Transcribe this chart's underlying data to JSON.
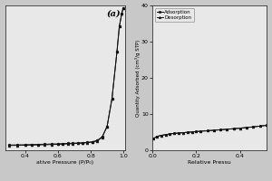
{
  "fig_width": 3.0,
  "fig_height": 2.0,
  "dpi": 100,
  "bg_color": "#c8c8c8",
  "plot_bg": "#e8e8e8",
  "panel_a": {
    "label": "(a)",
    "xlabel": "ative Pressure (P/P₀)",
    "xlim": [
      0.28,
      1.01
    ],
    "ylim": [
      0,
      280
    ],
    "xticks": [
      0.4,
      0.6,
      0.8,
      1.0
    ],
    "adsorption_x": [
      0.3,
      0.35,
      0.4,
      0.44,
      0.48,
      0.52,
      0.56,
      0.6,
      0.63,
      0.66,
      0.69,
      0.72,
      0.75,
      0.78,
      0.81,
      0.84,
      0.87,
      0.9,
      0.93,
      0.96,
      0.975,
      0.99,
      0.998
    ],
    "adsorption_y": [
      10,
      10.3,
      10.7,
      11.0,
      11.3,
      11.7,
      12.0,
      12.4,
      12.8,
      13.2,
      13.6,
      14.0,
      14.5,
      15.2,
      16.5,
      19,
      26,
      46,
      100,
      190,
      240,
      265,
      275
    ],
    "desorption_x": [
      0.998,
      0.99,
      0.975,
      0.96,
      0.93,
      0.9,
      0.87,
      0.84,
      0.81,
      0.78,
      0.75,
      0.72,
      0.69,
      0.66,
      0.63,
      0.6,
      0.56,
      0.52,
      0.48,
      0.44,
      0.4,
      0.35,
      0.3
    ],
    "desorption_y": [
      275,
      265,
      240,
      190,
      100,
      46,
      25,
      18,
      15.5,
      14.5,
      13.8,
      13.2,
      12.7,
      12.2,
      11.8,
      11.4,
      11.0,
      10.6,
      10.3,
      10.0,
      9.7,
      9.4,
      9.2
    ],
    "line_color": "#111111",
    "marker_adsorption": "o",
    "marker_desorption": "^",
    "markersize": 2.0,
    "linewidth": 0.7
  },
  "panel_b": {
    "xlabel": "Relative Pressu",
    "ylabel": "Quantity Adsorbed (cm³/g STP)",
    "xlim": [
      0.0,
      0.52
    ],
    "ylim": [
      0,
      40
    ],
    "yticks": [
      0,
      10,
      20,
      30,
      40
    ],
    "xticks": [
      0.0,
      0.2,
      0.4
    ],
    "adsorption_x": [
      0.005,
      0.02,
      0.04,
      0.06,
      0.08,
      0.1,
      0.12,
      0.14,
      0.16,
      0.18,
      0.2,
      0.22,
      0.25,
      0.28,
      0.31,
      0.34,
      0.37,
      0.4,
      0.43,
      0.46,
      0.49,
      0.52
    ],
    "adsorption_y": [
      3.2,
      3.8,
      4.1,
      4.3,
      4.5,
      4.65,
      4.75,
      4.85,
      4.95,
      5.05,
      5.15,
      5.25,
      5.38,
      5.52,
      5.66,
      5.8,
      5.94,
      6.1,
      6.28,
      6.46,
      6.66,
      6.88
    ],
    "desorption_x": [
      0.52,
      0.49,
      0.46,
      0.43,
      0.4,
      0.37,
      0.34,
      0.31,
      0.28,
      0.25,
      0.22,
      0.2,
      0.18,
      0.16,
      0.14,
      0.12,
      0.1,
      0.08,
      0.06,
      0.04,
      0.02,
      0.005
    ],
    "desorption_y": [
      6.88,
      6.66,
      6.46,
      6.28,
      6.1,
      5.94,
      5.8,
      5.66,
      5.52,
      5.38,
      5.25,
      5.15,
      5.05,
      4.95,
      4.85,
      4.75,
      4.65,
      4.5,
      4.3,
      4.1,
      3.8,
      3.2
    ],
    "line_color": "#111111",
    "marker_adsorption": "s",
    "marker_desorption": "^",
    "markersize": 2.0,
    "linewidth": 0.7,
    "legend_adsorption": "Adsorption",
    "legend_desorption": "Desorption"
  }
}
